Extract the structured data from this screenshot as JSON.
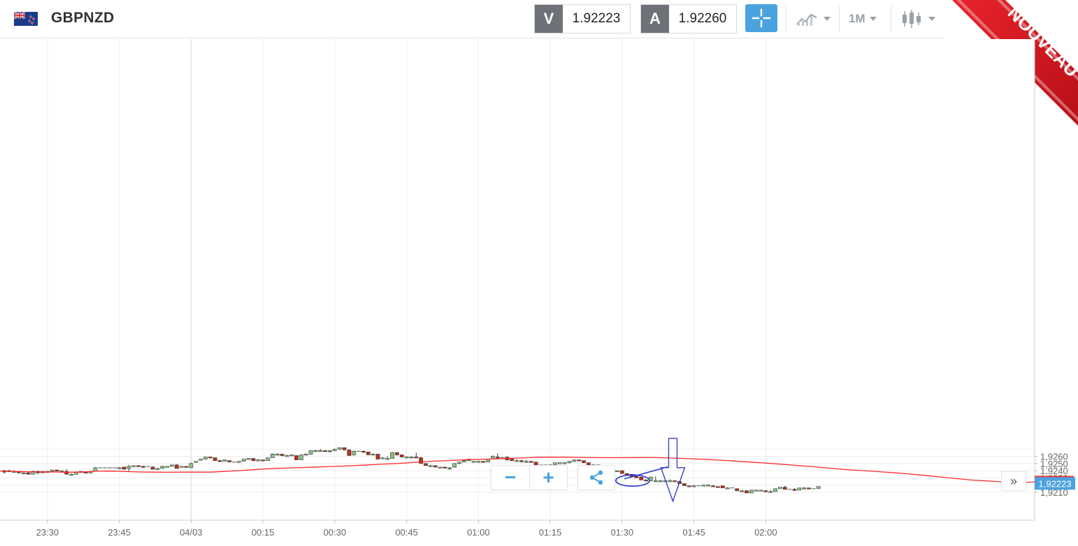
{
  "header": {
    "symbol": "GBPNZD",
    "bid_label": "V",
    "bid_value": "1.92223",
    "ask_label": "A",
    "ask_value": "1.92260",
    "interval_label": "1M",
    "accent_color": "#4aa3df"
  },
  "ribbon": {
    "text": "NOUVEAU",
    "color": "#d0121b"
  },
  "toolbar_icons": [
    "crosshair-icon",
    "chart-type-icon",
    "interval-dropdown",
    "candlestick-icon"
  ],
  "controls": {
    "zoom_out": "−",
    "zoom_in": "+",
    "share_icon": "share-icon",
    "scroll_end": "»"
  },
  "chart_data": {
    "type": "candlestick",
    "title": "",
    "xlabel": "",
    "ylabel": "",
    "ylim": [
      1.9206,
      1.9273
    ],
    "y_ticks": [
      "1,9210",
      "1,9220",
      "1,9230",
      "1,9240",
      "1,9250",
      "1,9260"
    ],
    "y_tick_values": [
      1.921,
      1.922,
      1.923,
      1.924,
      1.925,
      1.926
    ],
    "x_ticks": [
      "23:30",
      "23:45",
      "04/03",
      "00:15",
      "00:30",
      "00:45",
      "01:00",
      "01:15",
      "01:30",
      "01:45",
      "02:00"
    ],
    "x_tick_index": [
      9,
      24,
      39,
      54,
      69,
      84,
      99,
      114,
      129,
      144,
      159
    ],
    "grid": true,
    "up_color": "#8dc385",
    "down_color": "#b5331c",
    "ma_color": "#ff2a2a",
    "bid_line_label": "1,92223",
    "bid_line_value": 1.92223,
    "bid_line_color": "#4aa3df",
    "ma_last_label": "1,9224",
    "ma_last_value": 1.9224,
    "candles": [
      [
        1.924,
        1.9241,
        1.9236,
        1.9238
      ],
      [
        1.9239,
        1.9241,
        1.9238,
        1.924
      ],
      [
        1.9239,
        1.9241,
        1.9238,
        1.9239
      ],
      [
        1.9239,
        1.9239,
        1.9236,
        1.9237
      ],
      [
        1.9237,
        1.9238,
        1.9236,
        1.9237
      ],
      [
        1.9237,
        1.9238,
        1.9235,
        1.9235
      ],
      [
        1.9235,
        1.924,
        1.9235,
        1.9239
      ],
      [
        1.9239,
        1.924,
        1.9235,
        1.9237
      ],
      [
        1.9237,
        1.9239,
        1.9237,
        1.9239
      ],
      [
        1.9239,
        1.9239,
        1.9238,
        1.9239
      ],
      [
        1.9239,
        1.9241,
        1.9238,
        1.9241
      ],
      [
        1.9241,
        1.9241,
        1.9239,
        1.924
      ],
      [
        1.924,
        1.924,
        1.9239,
        1.924
      ],
      [
        1.9239,
        1.9242,
        1.9235,
        1.9235
      ],
      [
        1.9235,
        1.9236,
        1.9235,
        1.9235
      ],
      [
        1.9235,
        1.9239,
        1.9235,
        1.9238
      ],
      [
        1.9239,
        1.9239,
        1.9238,
        1.9239
      ],
      [
        1.9238,
        1.9239,
        1.9237,
        1.9237
      ],
      [
        1.9237,
        1.9239,
        1.9236,
        1.9239
      ],
      [
        1.9239,
        1.9245,
        1.9239,
        1.9244
      ],
      [
        1.9244,
        1.9244,
        1.9244,
        1.9244
      ],
      [
        1.9244,
        1.9244,
        1.9244,
        1.9244
      ],
      [
        1.9244,
        1.9244,
        1.9244,
        1.9244
      ],
      [
        1.9244,
        1.9244,
        1.9244,
        1.9244
      ],
      [
        1.9244,
        1.9245,
        1.9244,
        1.9244
      ],
      [
        1.9245,
        1.9245,
        1.9242,
        1.9242
      ],
      [
        1.9243,
        1.9248,
        1.9239,
        1.9246
      ],
      [
        1.9246,
        1.9247,
        1.9246,
        1.9247
      ],
      [
        1.9247,
        1.9247,
        1.9246,
        1.9246
      ],
      [
        1.9246,
        1.9247,
        1.9245,
        1.9245
      ],
      [
        1.9246,
        1.9246,
        1.9246,
        1.9246
      ],
      [
        1.9245,
        1.9246,
        1.9242,
        1.9242
      ],
      [
        1.9243,
        1.9244,
        1.9242,
        1.9243
      ],
      [
        1.9243,
        1.9247,
        1.9243,
        1.9246
      ],
      [
        1.9246,
        1.9246,
        1.9245,
        1.9246
      ],
      [
        1.9246,
        1.9248,
        1.9246,
        1.9248
      ],
      [
        1.9248,
        1.9249,
        1.9243,
        1.9243
      ],
      [
        1.9246,
        1.9246,
        1.9245,
        1.9246
      ],
      [
        1.9246,
        1.9246,
        1.9245,
        1.9245
      ],
      [
        1.9244,
        1.9251,
        1.9244,
        1.925
      ],
      [
        1.9252,
        1.9253,
        1.9252,
        1.9253
      ],
      [
        1.9255,
        1.9256,
        1.9254,
        1.9256
      ],
      [
        1.9256,
        1.9259,
        1.9256,
        1.9259
      ],
      [
        1.9259,
        1.9259,
        1.9258,
        1.9258
      ],
      [
        1.9258,
        1.9258,
        1.9254,
        1.9254
      ],
      [
        1.9254,
        1.9255,
        1.9252,
        1.9253
      ],
      [
        1.9253,
        1.9255,
        1.9253,
        1.9255
      ],
      [
        1.9254,
        1.9254,
        1.9252,
        1.9252
      ],
      [
        1.9252,
        1.9252,
        1.9252,
        1.9252
      ],
      [
        1.9252,
        1.9253,
        1.9251,
        1.9253
      ],
      [
        1.9253,
        1.9256,
        1.9253,
        1.9256
      ],
      [
        1.9256,
        1.9257,
        1.9256,
        1.9257
      ],
      [
        1.9257,
        1.9257,
        1.9253,
        1.9254
      ],
      [
        1.9254,
        1.9256,
        1.9253,
        1.9255
      ],
      [
        1.9255,
        1.9255,
        1.9253,
        1.9254
      ],
      [
        1.9254,
        1.9258,
        1.9254,
        1.9258
      ],
      [
        1.9258,
        1.9264,
        1.9258,
        1.9263
      ],
      [
        1.9263,
        1.9264,
        1.9263,
        1.9263
      ],
      [
        1.9263,
        1.9263,
        1.926,
        1.9261
      ],
      [
        1.9261,
        1.9262,
        1.9261,
        1.9261
      ],
      [
        1.9262,
        1.9262,
        1.9261,
        1.9262
      ],
      [
        1.9261,
        1.9261,
        1.9255,
        1.9255
      ],
      [
        1.9255,
        1.9262,
        1.9255,
        1.9262
      ],
      [
        1.9262,
        1.9264,
        1.9262,
        1.9263
      ],
      [
        1.9263,
        1.9268,
        1.9262,
        1.9268
      ],
      [
        1.9268,
        1.9269,
        1.9267,
        1.9268
      ],
      [
        1.9268,
        1.927,
        1.9267,
        1.9268
      ],
      [
        1.9268,
        1.9268,
        1.9267,
        1.9267
      ],
      [
        1.9267,
        1.9268,
        1.9265,
        1.9268
      ],
      [
        1.9268,
        1.927,
        1.9267,
        1.927
      ],
      [
        1.927,
        1.9272,
        1.9269,
        1.9272
      ],
      [
        1.9272,
        1.9272,
        1.9268,
        1.9269
      ],
      [
        1.9269,
        1.9269,
        1.9261,
        1.9261
      ],
      [
        1.9262,
        1.9268,
        1.9261,
        1.9267
      ],
      [
        1.9267,
        1.9267,
        1.9267,
        1.9267
      ],
      [
        1.9267,
        1.9268,
        1.9265,
        1.9266
      ],
      [
        1.9266,
        1.9266,
        1.9262,
        1.9262
      ],
      [
        1.9262,
        1.9264,
        1.9262,
        1.9263
      ],
      [
        1.9263,
        1.9263,
        1.9256,
        1.9256
      ],
      [
        1.9257,
        1.9258,
        1.9256,
        1.9258
      ],
      [
        1.9257,
        1.926,
        1.9257,
        1.9257
      ],
      [
        1.9257,
        1.9266,
        1.9257,
        1.9265
      ],
      [
        1.9265,
        1.9266,
        1.9261,
        1.9262
      ],
      [
        1.9262,
        1.9262,
        1.9258,
        1.9259
      ],
      [
        1.9259,
        1.926,
        1.9258,
        1.9259
      ],
      [
        1.9259,
        1.926,
        1.9258,
        1.9259
      ],
      [
        1.9259,
        1.9265,
        1.9258,
        1.9258
      ],
      [
        1.9258,
        1.9259,
        1.925,
        1.925
      ],
      [
        1.925,
        1.925,
        1.9247,
        1.9247
      ],
      [
        1.9247,
        1.9248,
        1.9246,
        1.9247
      ],
      [
        1.9247,
        1.9247,
        1.9245,
        1.9245
      ],
      [
        1.9245,
        1.9245,
        1.9244,
        1.9245
      ],
      [
        1.9245,
        1.9245,
        1.9243,
        1.9244
      ],
      [
        1.9244,
        1.9245,
        1.9241,
        1.9244
      ],
      [
        1.9245,
        1.925,
        1.9244,
        1.925
      ],
      [
        1.925,
        1.9252,
        1.9249,
        1.9252
      ],
      [
        1.9252,
        1.9255,
        1.9252,
        1.9254
      ],
      [
        1.9254,
        1.9256,
        1.9253,
        1.9256
      ],
      [
        1.9252,
        1.9253,
        1.9252,
        1.9253
      ],
      [
        1.9253,
        1.9254,
        1.9252,
        1.9253
      ],
      [
        1.9253,
        1.9253,
        1.9252,
        1.9252
      ],
      [
        1.9252,
        1.9256,
        1.9252,
        1.9256
      ],
      [
        1.9256,
        1.9261,
        1.9256,
        1.926
      ],
      [
        1.9259,
        1.9264,
        1.9257,
        1.9258
      ],
      [
        1.9258,
        1.9259,
        1.9258,
        1.9258
      ],
      [
        1.9259,
        1.9259,
        1.9254,
        1.9255
      ],
      [
        1.9257,
        1.9257,
        1.9253,
        1.9254
      ],
      [
        1.9254,
        1.9256,
        1.9253,
        1.9254
      ],
      [
        1.9254,
        1.9255,
        1.9251,
        1.9253
      ],
      [
        1.9253,
        1.9255,
        1.9251,
        1.9253
      ],
      [
        1.9253,
        1.9253,
        1.9251,
        1.9252
      ],
      [
        1.9252,
        1.9252,
        1.9248,
        1.9248
      ],
      [
        1.9248,
        1.9248,
        1.9247,
        1.9247
      ],
      [
        1.9248,
        1.9248,
        1.9247,
        1.9248
      ],
      [
        1.9247,
        1.9249,
        1.9247,
        1.9248
      ],
      [
        1.9248,
        1.9251,
        1.9248,
        1.9251
      ],
      [
        1.925,
        1.9251,
        1.925,
        1.9251
      ],
      [
        1.9251,
        1.9252,
        1.9251,
        1.9251
      ],
      [
        1.9251,
        1.9253,
        1.925,
        1.9253
      ],
      [
        1.9253,
        1.9255,
        1.9252,
        1.9255
      ],
      [
        1.9255,
        1.9255,
        1.9254,
        1.9254
      ],
      [
        1.9254,
        1.9254,
        1.9251,
        1.9251
      ],
      [
        1.9251,
        1.9251,
        1.9248,
        1.9248
      ],
      [
        1.9248,
        1.9249,
        1.9248,
        1.9248
      ],
      [
        1.9248,
        1.9248,
        1.9246,
        1.9247
      ],
      [
        1.9247,
        1.9247,
        1.9246,
        1.9246
      ],
      [
        1.9246,
        1.9246,
        1.9239,
        1.9239
      ],
      [
        1.9239,
        1.924,
        1.9239,
        1.924
      ],
      [
        1.924,
        1.924,
        1.9239,
        1.924
      ],
      [
        1.924,
        1.924,
        1.9236,
        1.9236
      ],
      [
        1.9236,
        1.9236,
        1.9235,
        1.9235
      ],
      [
        1.9235,
        1.9235,
        1.9232,
        1.9232
      ],
      [
        1.9232,
        1.9232,
        1.923,
        1.923
      ],
      [
        1.9231,
        1.9231,
        1.9227,
        1.9227
      ],
      [
        1.9227,
        1.9228,
        1.9226,
        1.9226
      ],
      [
        1.9226,
        1.9231,
        1.9225,
        1.9231
      ],
      [
        1.9226,
        1.9232,
        1.9226,
        1.9226
      ],
      [
        1.9226,
        1.9227,
        1.9226,
        1.9226
      ],
      [
        1.9226,
        1.9227,
        1.9226,
        1.9226
      ],
      [
        1.9226,
        1.9228,
        1.9226,
        1.9226
      ],
      [
        1.9226,
        1.9226,
        1.9225,
        1.9225
      ],
      [
        1.9225,
        1.9225,
        1.9222,
        1.9222
      ],
      [
        1.9222,
        1.9222,
        1.9219,
        1.9219
      ],
      [
        1.9219,
        1.9219,
        1.9218,
        1.9218
      ],
      [
        1.9218,
        1.922,
        1.9218,
        1.9219
      ],
      [
        1.9219,
        1.9219,
        1.9219,
        1.9219
      ],
      [
        1.9219,
        1.922,
        1.9219,
        1.922
      ],
      [
        1.922,
        1.9221,
        1.9219,
        1.922
      ],
      [
        1.9219,
        1.922,
        1.9218,
        1.9218
      ],
      [
        1.9218,
        1.9218,
        1.9217,
        1.9217
      ],
      [
        1.9219,
        1.9219,
        1.9216,
        1.9216
      ],
      [
        1.9216,
        1.9217,
        1.9216,
        1.9216
      ],
      [
        1.9216,
        1.9216,
        1.9216,
        1.9216
      ],
      [
        1.9215,
        1.9215,
        1.9212,
        1.9212
      ],
      [
        1.9212,
        1.9213,
        1.9211,
        1.9212
      ],
      [
        1.9212,
        1.9213,
        1.9209,
        1.9209
      ],
      [
        1.9209,
        1.9213,
        1.9209,
        1.9213
      ],
      [
        1.9213,
        1.9213,
        1.9212,
        1.9213
      ],
      [
        1.9213,
        1.9213,
        1.9212,
        1.9213
      ],
      [
        1.9212,
        1.9213,
        1.9211,
        1.9211
      ],
      [
        1.9211,
        1.9213,
        1.9211,
        1.9211
      ],
      [
        1.9211,
        1.9215,
        1.9211,
        1.9215
      ],
      [
        1.9215,
        1.9217,
        1.9215,
        1.9217
      ],
      [
        1.9217,
        1.9219,
        1.9214,
        1.9214
      ],
      [
        1.9214,
        1.9214,
        1.9214,
        1.9214
      ],
      [
        1.9214,
        1.9216,
        1.9212,
        1.9213
      ],
      [
        1.9213,
        1.9216,
        1.9213,
        1.9216
      ],
      [
        1.9216,
        1.9217,
        1.9214,
        1.9216
      ],
      [
        1.9216,
        1.9216,
        1.9215,
        1.9215
      ],
      [
        1.9215,
        1.9215,
        1.9215,
        1.9215
      ],
      [
        1.9215,
        1.9218,
        1.9215,
        1.9218
      ]
    ],
    "ma_points": [
      [
        0,
        1.92395
      ],
      [
        20,
        1.9239
      ],
      [
        40,
        1.92385
      ],
      [
        60,
        1.92382
      ],
      [
        80,
        1.92382
      ],
      [
        90,
        1.92379
      ],
      [
        106,
        1.92379
      ],
      [
        124,
        1.92384
      ],
      [
        140,
        1.92392
      ],
      [
        160,
        1.92394
      ],
      [
        180,
        1.92387
      ],
      [
        200,
        1.92382
      ],
      [
        220,
        1.9238
      ],
      [
        238,
        1.92378
      ],
      [
        260,
        1.9238
      ],
      [
        285,
        1.9238
      ],
      [
        302,
        1.9238
      ],
      [
        320,
        1.92389
      ],
      [
        345,
        1.92402
      ],
      [
        370,
        1.92418
      ],
      [
        395,
        1.92432
      ],
      [
        420,
        1.9244
      ],
      [
        445,
        1.92448
      ],
      [
        470,
        1.92455
      ],
      [
        495,
        1.92465
      ],
      [
        520,
        1.92477
      ],
      [
        545,
        1.92489
      ],
      [
        570,
        1.925
      ],
      [
        595,
        1.92517
      ],
      [
        620,
        1.92532
      ],
      [
        645,
        1.92542
      ],
      [
        670,
        1.92553
      ],
      [
        695,
        1.9256
      ],
      [
        720,
        1.92566
      ],
      [
        745,
        1.92577
      ],
      [
        770,
        1.92587
      ],
      [
        790,
        1.92587
      ],
      [
        810,
        1.92587
      ],
      [
        830,
        1.92584
      ],
      [
        860,
        1.92581
      ],
      [
        890,
        1.92581
      ],
      [
        918,
        1.92583
      ],
      [
        940,
        1.92582
      ],
      [
        965,
        1.92575
      ],
      [
        990,
        1.92566
      ],
      [
        1015,
        1.92554
      ],
      [
        1040,
        1.92541
      ],
      [
        1065,
        1.92524
      ],
      [
        1090,
        1.92509
      ],
      [
        1115,
        1.92491
      ],
      [
        1140,
        1.92473
      ],
      [
        1165,
        1.92453
      ],
      [
        1190,
        1.92431
      ],
      [
        1215,
        1.92412
      ],
      [
        1240,
        1.92397
      ],
      [
        1265,
        1.92381
      ],
      [
        1290,
        1.92363
      ],
      [
        1315,
        1.92341
      ],
      [
        1340,
        1.92317
      ],
      [
        1365,
        1.92293
      ],
      [
        1390,
        1.9227
      ],
      [
        1415,
        1.92255
      ],
      [
        1440,
        1.9224
      ],
      [
        1462,
        1.9223
      ],
      [
        1480,
        1.92245
      ]
    ],
    "annotations": [
      {
        "type": "trendline",
        "from": [
          129.5,
          1.92286
        ],
        "to": [
          138.5,
          1.92453
        ]
      },
      {
        "type": "ellipse",
        "center": [
          131.2,
          1.92262
        ]
      },
      {
        "type": "down-arrow",
        "at": [
          139.6,
          1.92403
        ]
      }
    ]
  }
}
